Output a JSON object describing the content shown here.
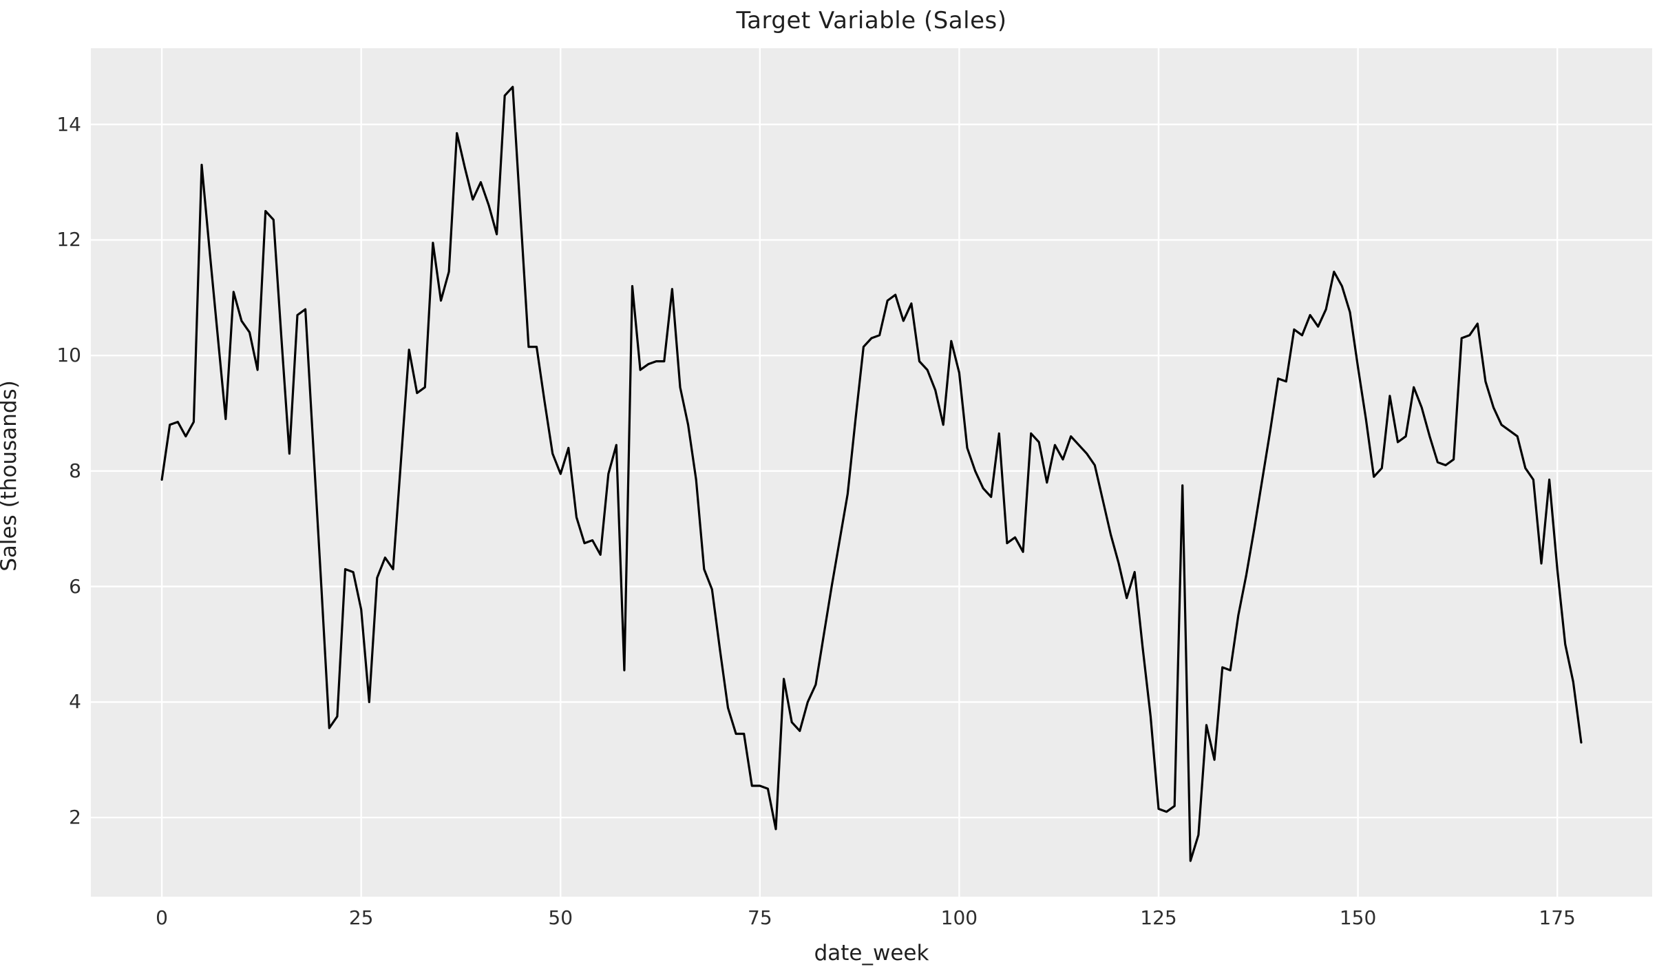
{
  "colors": {
    "figure_background": "#ffffff",
    "axes_background": "#ececec",
    "gridline": "#ffffff",
    "line": "#000000",
    "title_text": "#1f1f1f",
    "tick_text": "#2e2e2e"
  },
  "chart_data": {
    "type": "line",
    "title": "Target Variable (Sales)",
    "xlabel": "date_week",
    "ylabel": "Sales (thousands)",
    "legend": "none",
    "grid": "on",
    "x_ticks": [
      0,
      25,
      50,
      75,
      100,
      125,
      150,
      175
    ],
    "y_ticks": [
      2,
      4,
      6,
      8,
      10,
      12,
      14
    ],
    "xlim": [
      -8.9,
      186.9
    ],
    "ylim": [
      0.63,
      15.32
    ],
    "series": [
      {
        "name": "Sales",
        "color": "#000000",
        "x_start": 0,
        "x_step": 1,
        "values": [
          7.85,
          8.8,
          8.85,
          8.6,
          8.85,
          13.3,
          11.8,
          10.35,
          8.9,
          11.1,
          10.6,
          10.4,
          9.75,
          12.5,
          12.35,
          10.3,
          8.3,
          10.7,
          10.8,
          8.4,
          6.0,
          3.55,
          3.75,
          6.3,
          6.25,
          5.6,
          4.0,
          6.15,
          6.5,
          6.3,
          8.2,
          10.1,
          9.35,
          9.45,
          11.95,
          10.95,
          11.45,
          13.85,
          13.25,
          12.7,
          13.0,
          12.6,
          12.1,
          14.5,
          14.65,
          12.4,
          10.15,
          10.15,
          9.2,
          8.3,
          7.95,
          8.4,
          7.2,
          6.75,
          6.8,
          6.55,
          7.95,
          8.45,
          4.55,
          11.2,
          9.75,
          9.85,
          9.9,
          9.9,
          11.15,
          9.45,
          8.8,
          7.85,
          6.3,
          5.95,
          4.9,
          3.9,
          3.45,
          3.45,
          2.55,
          2.55,
          2.5,
          1.8,
          4.4,
          3.65,
          3.5,
          4.0,
          4.3,
          5.15,
          6.0,
          6.8,
          7.6,
          8.9,
          10.15,
          10.3,
          10.35,
          10.95,
          11.05,
          10.6,
          10.9,
          9.9,
          9.75,
          9.4,
          8.8,
          10.25,
          9.7,
          8.4,
          8.0,
          7.7,
          7.55,
          8.65,
          6.75,
          6.85,
          6.6,
          8.65,
          8.5,
          7.8,
          8.45,
          8.2,
          8.6,
          8.45,
          8.3,
          8.1,
          7.5,
          6.9,
          6.4,
          5.8,
          6.25,
          4.95,
          3.75,
          2.15,
          2.1,
          2.2,
          7.75,
          1.25,
          1.7,
          3.6,
          3.0,
          4.6,
          4.55,
          5.5,
          6.2,
          7.0,
          7.85,
          8.7,
          9.6,
          9.55,
          10.45,
          10.35,
          10.7,
          10.5,
          10.8,
          11.45,
          11.2,
          10.75,
          9.8,
          8.9,
          7.9,
          8.05,
          9.3,
          8.5,
          8.6,
          9.45,
          9.1,
          8.6,
          8.15,
          8.1,
          8.2,
          10.3,
          10.35,
          10.55,
          9.55,
          9.1,
          8.8,
          8.7,
          8.6,
          8.05,
          7.85,
          6.4,
          7.85,
          6.3,
          5.0,
          4.35,
          3.3
        ]
      }
    ]
  }
}
